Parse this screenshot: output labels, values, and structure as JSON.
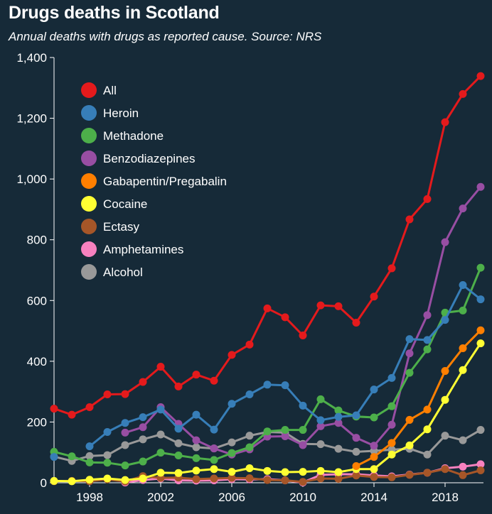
{
  "header": {
    "title": "Drugs deaths in Scotland",
    "subtitle": "Annual deaths with drugs as reported cause. Source: NRS"
  },
  "colors": {
    "background": "#162a38",
    "axis": "#ffffff"
  },
  "chart_data": {
    "type": "line",
    "title": "Drugs deaths in Scotland",
    "subtitle": "Annual deaths with drugs as reported cause. Source: NRS",
    "xlabel": "",
    "ylabel": "",
    "xlim": [
      1996,
      2020
    ],
    "ylim": [
      0,
      1400
    ],
    "x_ticks": [
      1998,
      2002,
      2006,
      2010,
      2014,
      2018
    ],
    "x_tick_labels": [
      "1998",
      "2002",
      "2006",
      "2010",
      "2014",
      "2018"
    ],
    "y_ticks": [
      0,
      200,
      400,
      600,
      800,
      1000,
      1200,
      1400
    ],
    "y_tick_labels": [
      "0",
      "200",
      "400",
      "600",
      "800",
      "1,000",
      "1,200",
      "1,400"
    ],
    "grid": false,
    "legend_position": "top-left",
    "x": [
      1996,
      1997,
      1998,
      1999,
      2000,
      2001,
      2002,
      2003,
      2004,
      2005,
      2006,
      2007,
      2008,
      2009,
      2010,
      2011,
      2012,
      2013,
      2014,
      2015,
      2016,
      2017,
      2018,
      2019,
      2020
    ],
    "series": [
      {
        "name": "All",
        "color": "#e41a1c",
        "values": [
          244,
          224,
          249,
          291,
          292,
          332,
          382,
          317,
          356,
          336,
          421,
          455,
          574,
          545,
          485,
          584,
          581,
          527,
          613,
          706,
          867,
          934,
          1187,
          1280,
          1339
        ]
      },
      {
        "name": "Heroin",
        "color": "#377eb8",
        "values": [
          85,
          null,
          120,
          167,
          197,
          216,
          241,
          178,
          224,
          175,
          260,
          291,
          323,
          321,
          254,
          206,
          217,
          222,
          307,
          345,
          473,
          470,
          536,
          651,
          604
        ]
      },
      {
        "name": "Methadone",
        "color": "#4daf4a",
        "values": [
          102,
          87,
          67,
          66,
          57,
          70,
          99,
          90,
          81,
          75,
          98,
          117,
          169,
          174,
          174,
          275,
          238,
          218,
          215,
          252,
          362,
          439,
          560,
          567,
          708
        ]
      },
      {
        "name": "Benzodiazepines",
        "color": "#984ea3",
        "values": [
          null,
          null,
          null,
          null,
          165,
          183,
          249,
          194,
          140,
          113,
          93,
          110,
          152,
          153,
          124,
          186,
          197,
          148,
          122,
          191,
          426,
          552,
          792,
          903,
          974
        ]
      },
      {
        "name": "Gabapentin/Pregabalin",
        "color": "#ff7f00",
        "values": [
          null,
          null,
          null,
          null,
          null,
          null,
          null,
          null,
          null,
          null,
          null,
          null,
          null,
          null,
          null,
          null,
          null,
          55,
          85,
          131,
          207,
          241,
          368,
          443,
          502
        ]
      },
      {
        "name": "Cocaine",
        "color": "#ffff33",
        "values": [
          6,
          5,
          10,
          14,
          9,
          14,
          33,
          32,
          40,
          45,
          36,
          48,
          39,
          35,
          36,
          39,
          35,
          45,
          45,
          93,
          123,
          176,
          273,
          371,
          459
        ]
      },
      {
        "name": "Ectasy",
        "color": "#a65628",
        "values": [
          5,
          6,
          5,
          11,
          4,
          22,
          16,
          17,
          12,
          14,
          16,
          15,
          9,
          8,
          3,
          14,
          13,
          24,
          19,
          18,
          26,
          33,
          45,
          25,
          41
        ]
      },
      {
        "name": "Amphetamines",
        "color": "#f781bf",
        "values": [
          null,
          null,
          null,
          null,
          1,
          9,
          14,
          8,
          7,
          8,
          12,
          11,
          12,
          8,
          1,
          26,
          28,
          28,
          24,
          21,
          27,
          33,
          48,
          53,
          61
        ]
      },
      {
        "name": "Alcohol",
        "color": "#999999",
        "values": [
          86,
          72,
          88,
          91,
          124,
          143,
          159,
          130,
          117,
          113,
          133,
          155,
          167,
          165,
          128,
          127,
          112,
          102,
          105,
          109,
          112,
          93,
          155,
          140,
          174
        ]
      }
    ]
  }
}
